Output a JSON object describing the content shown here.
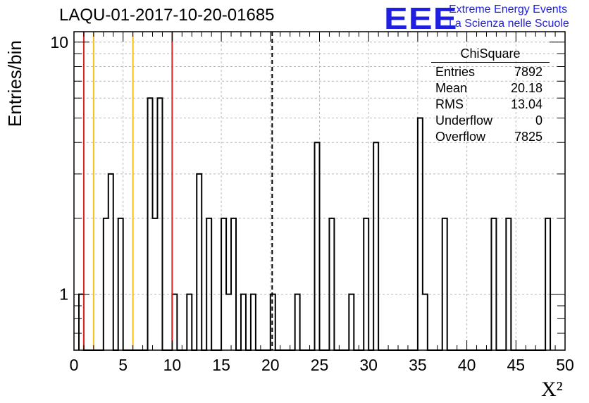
{
  "title": "LAQU-01-2017-10-20-01685",
  "logo": {
    "mark": "EEE",
    "line1": "Extreme Energy Events",
    "line2": "La Scienza nelle Scuole"
  },
  "stats": {
    "title": "ChiSquare",
    "rows": [
      {
        "label": "Entries",
        "value": "7892"
      },
      {
        "label": "Mean",
        "value": "20.18"
      },
      {
        "label": "RMS",
        "value": "13.04"
      },
      {
        "label": "Underflow",
        "value": "0"
      },
      {
        "label": "Overflow",
        "value": "7825"
      }
    ]
  },
  "chart_data": {
    "type": "bar",
    "histogram": "step",
    "title": "LAQU-01-2017-10-20-01685",
    "xlabel": "X²",
    "ylabel": "Entries/bin",
    "xlim": [
      0,
      50
    ],
    "ylim": [
      0.6,
      11
    ],
    "yscale": "log",
    "grid": true,
    "bin_width": 0.5,
    "xticks": [
      0,
      5,
      10,
      15,
      20,
      25,
      30,
      35,
      40,
      45,
      50
    ],
    "yticks": [
      1,
      10
    ],
    "bins": [
      {
        "x": 0.5,
        "y": 1
      },
      {
        "x": 1,
        "y": 0
      },
      {
        "x": 3,
        "y": 2
      },
      {
        "x": 3.5,
        "y": 3
      },
      {
        "x": 4,
        "y": 0
      },
      {
        "x": 4.5,
        "y": 2
      },
      {
        "x": 5,
        "y": 0
      },
      {
        "x": 7.5,
        "y": 6
      },
      {
        "x": 8,
        "y": 2
      },
      {
        "x": 8.5,
        "y": 6
      },
      {
        "x": 9,
        "y": 0
      },
      {
        "x": 10,
        "y": 1
      },
      {
        "x": 10.5,
        "y": 0
      },
      {
        "x": 11.5,
        "y": 1
      },
      {
        "x": 12,
        "y": 0
      },
      {
        "x": 12.5,
        "y": 3
      },
      {
        "x": 13,
        "y": 0
      },
      {
        "x": 13.5,
        "y": 2
      },
      {
        "x": 14,
        "y": 0
      },
      {
        "x": 15,
        "y": 2
      },
      {
        "x": 15.5,
        "y": 1
      },
      {
        "x": 16,
        "y": 2
      },
      {
        "x": 16.5,
        "y": 0
      },
      {
        "x": 17,
        "y": 1
      },
      {
        "x": 17.5,
        "y": 0
      },
      {
        "x": 18,
        "y": 1
      },
      {
        "x": 18.5,
        "y": 0
      },
      {
        "x": 20,
        "y": 1
      },
      {
        "x": 20.5,
        "y": 0
      },
      {
        "x": 22.5,
        "y": 1
      },
      {
        "x": 23,
        "y": 0
      },
      {
        "x": 24.5,
        "y": 4
      },
      {
        "x": 25,
        "y": 0
      },
      {
        "x": 26,
        "y": 2
      },
      {
        "x": 26.5,
        "y": 0
      },
      {
        "x": 28,
        "y": 1
      },
      {
        "x": 28.5,
        "y": 0
      },
      {
        "x": 29.5,
        "y": 2
      },
      {
        "x": 30,
        "y": 0
      },
      {
        "x": 30.5,
        "y": 4
      },
      {
        "x": 31,
        "y": 0
      },
      {
        "x": 35,
        "y": 5
      },
      {
        "x": 35.5,
        "y": 1
      },
      {
        "x": 36,
        "y": 0
      },
      {
        "x": 37.5,
        "y": 2
      },
      {
        "x": 38,
        "y": 0
      },
      {
        "x": 42.5,
        "y": 2
      },
      {
        "x": 43,
        "y": 0
      },
      {
        "x": 44,
        "y": 2
      },
      {
        "x": 44.5,
        "y": 0
      },
      {
        "x": 48,
        "y": 2
      },
      {
        "x": 48.5,
        "y": 0
      }
    ],
    "vlines": [
      {
        "x": 1,
        "color": "#dd2222"
      },
      {
        "x": 2,
        "color": "#f2c01f"
      },
      {
        "x": 6,
        "color": "#f2c01f"
      },
      {
        "x": 10,
        "color": "#dd2222"
      },
      {
        "x": 20.18,
        "color": "#000000",
        "dashed": true
      }
    ]
  }
}
